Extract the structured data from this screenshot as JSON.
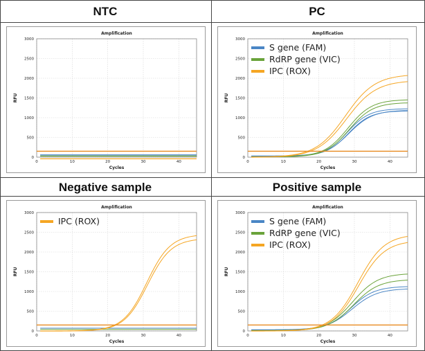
{
  "panels": [
    {
      "title": "NTC"
    },
    {
      "title": "PC"
    },
    {
      "title": "Negative sample"
    },
    {
      "title": "Positive sample"
    }
  ],
  "colors": {
    "fam": "#4a86c5",
    "vic": "#6aa33a",
    "rox": "#f5a623",
    "threshold": "#e8891e",
    "grid": "#d6d6d6"
  },
  "chart_data": [
    {
      "type": "line",
      "title": "Amplification",
      "xlabel": "Cycles",
      "ylabel": "RFU",
      "xlim": [
        0,
        45
      ],
      "ylim": [
        0,
        3000
      ],
      "xticks": [
        0,
        10,
        20,
        30,
        40
      ],
      "yticks": [
        0,
        500,
        1000,
        1500,
        2000,
        2500,
        3000
      ],
      "grid": true,
      "threshold": 150,
      "legend": [],
      "series": [
        {
          "color": "#4a86c5",
          "curves": [
            {
              "plateau": 0,
              "mid": 28,
              "k": 0.3,
              "base": 60
            },
            {
              "plateau": 0,
              "mid": 28,
              "k": 0.3,
              "base": 55
            }
          ]
        },
        {
          "color": "#6aa33a",
          "curves": [
            {
              "plateau": 0,
              "mid": 28,
              "k": 0.3,
              "base": 30
            },
            {
              "plateau": 0,
              "mid": 28,
              "k": 0.3,
              "base": 25
            }
          ]
        },
        {
          "color": "#f5a623",
          "curves": [
            {
              "plateau": 0,
              "mid": 28,
              "k": 0.3,
              "base": -40
            },
            {
              "plateau": 0,
              "mid": 28,
              "k": 0.3,
              "base": -45
            }
          ]
        }
      ]
    },
    {
      "type": "line",
      "title": "Amplification",
      "xlabel": "Cycles",
      "ylabel": "RFU",
      "xlim": [
        0,
        45
      ],
      "ylim": [
        0,
        3000
      ],
      "xticks": [
        0,
        10,
        20,
        30,
        40
      ],
      "yticks": [
        0,
        500,
        1000,
        1500,
        2000,
        2500,
        3000
      ],
      "grid": true,
      "threshold": 150,
      "legend": [
        "S gene (FAM)",
        "RdRP gene (VIC)",
        "IPC (ROX)"
      ],
      "series": [
        {
          "name": "S gene (FAM)",
          "color": "#4a86c5",
          "curves": [
            {
              "plateau": 1200,
              "mid": 28,
              "k": 0.32,
              "base": 30
            },
            {
              "plateau": 1150,
              "mid": 28.3,
              "k": 0.32,
              "base": 25
            },
            {
              "plateau": 1170,
              "mid": 28.5,
              "k": 0.3,
              "base": 20
            }
          ]
        },
        {
          "name": "RdRP gene (VIC)",
          "color": "#6aa33a",
          "curves": [
            {
              "plateau": 1450,
              "mid": 28.2,
              "k": 0.3,
              "base": 10
            },
            {
              "plateau": 1380,
              "mid": 28.5,
              "k": 0.3,
              "base": 5
            }
          ]
        },
        {
          "name": "IPC (ROX)",
          "color": "#f5a623",
          "curves": [
            {
              "plateau": 2100,
              "mid": 27.5,
              "k": 0.24,
              "base": 0
            },
            {
              "plateau": 1950,
              "mid": 27.8,
              "k": 0.24,
              "base": -5
            }
          ]
        }
      ]
    },
    {
      "type": "line",
      "title": "Amplification",
      "xlabel": "Cycles",
      "ylabel": "RFU",
      "xlim": [
        0,
        45
      ],
      "ylim": [
        0,
        3000
      ],
      "xticks": [
        0,
        10,
        20,
        30,
        40
      ],
      "yticks": [
        0,
        500,
        1000,
        1500,
        2000,
        2500,
        3000
      ],
      "grid": true,
      "threshold": 150,
      "legend": [
        "IPC (ROX)"
      ],
      "series": [
        {
          "color": "#4a86c5",
          "curves": [
            {
              "plateau": 0,
              "mid": 28,
              "k": 0.3,
              "base": 70
            }
          ]
        },
        {
          "color": "#6aa33a",
          "curves": [
            {
              "plateau": 0,
              "mid": 28,
              "k": 0.3,
              "base": 40
            }
          ]
        },
        {
          "name": "IPC (ROX)",
          "color": "#f5a623",
          "curves": [
            {
              "plateau": 2450,
              "mid": 31,
              "k": 0.3,
              "base": 0
            },
            {
              "plateau": 2350,
              "mid": 31.2,
              "k": 0.3,
              "base": -5
            }
          ]
        }
      ]
    },
    {
      "type": "line",
      "title": "Amplification",
      "xlabel": "Cycles",
      "ylabel": "RFU",
      "xlim": [
        0,
        45
      ],
      "ylim": [
        0,
        3000
      ],
      "xticks": [
        0,
        10,
        20,
        30,
        40
      ],
      "yticks": [
        0,
        500,
        1000,
        1500,
        2000,
        2500,
        3000
      ],
      "grid": true,
      "threshold": 150,
      "legend": [
        "S gene (FAM)",
        "RdRP gene (VIC)",
        "IPC (ROX)"
      ],
      "series": [
        {
          "name": "S gene (FAM)",
          "color": "#4a86c5",
          "curves": [
            {
              "plateau": 1100,
              "mid": 29,
              "k": 0.3,
              "base": 30
            },
            {
              "plateau": 1050,
              "mid": 29.3,
              "k": 0.28,
              "base": 25
            }
          ]
        },
        {
          "name": "RdRP gene (VIC)",
          "color": "#6aa33a",
          "curves": [
            {
              "plateau": 1450,
              "mid": 29.5,
              "k": 0.28,
              "base": 10
            },
            {
              "plateau": 1300,
              "mid": 29.7,
              "k": 0.28,
              "base": 5
            }
          ]
        },
        {
          "name": "IPC (ROX)",
          "color": "#f5a623",
          "curves": [
            {
              "plateau": 2450,
              "mid": 31,
              "k": 0.27,
              "base": 0
            },
            {
              "plateau": 2300,
              "mid": 31.2,
              "k": 0.27,
              "base": -5
            }
          ]
        }
      ]
    }
  ]
}
